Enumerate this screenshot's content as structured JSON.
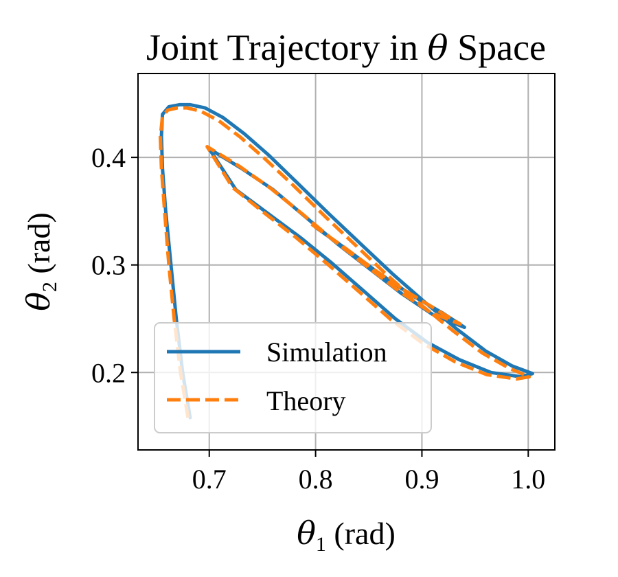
{
  "chart_data": {
    "type": "line",
    "title": {
      "prefix": "Joint Trajectory in ",
      "symbol": "θ",
      "suffix": " Space"
    },
    "xlabel": {
      "symbol": "θ",
      "subscript": "1",
      "unit": " (rad)"
    },
    "ylabel": {
      "symbol": "θ",
      "subscript": "2",
      "unit": " (rad)"
    },
    "xlim": [
      0.633,
      1.025
    ],
    "ylim": [
      0.128,
      0.478
    ],
    "xticks": [
      0.7,
      0.8,
      0.9,
      1.0
    ],
    "xtick_labels": [
      "0.7",
      "0.8",
      "0.9",
      "1.0"
    ],
    "yticks": [
      0.2,
      0.3,
      0.4
    ],
    "ytick_labels": [
      "0.2",
      "0.3",
      "0.4"
    ],
    "grid": true,
    "legend": {
      "location": "lower-left"
    },
    "series": [
      {
        "name": "Simulation",
        "color": "#1f77b4",
        "style": "solid",
        "x": [
          0.682,
          0.675,
          0.669,
          0.664,
          0.659,
          0.656,
          0.655,
          0.656,
          0.662,
          0.672,
          0.682,
          0.696,
          0.713,
          0.733,
          0.756,
          0.782,
          0.812,
          0.842,
          0.872,
          0.902,
          0.932,
          0.96,
          0.985,
          1.004,
          0.993,
          0.965,
          0.935,
          0.905,
          0.875,
          0.845,
          0.815,
          0.785,
          0.755,
          0.725,
          0.7,
          0.73,
          0.76,
          0.79,
          0.82,
          0.85,
          0.88,
          0.91,
          0.94,
          0.92,
          0.89,
          0.86,
          0.83,
          0.8
        ],
        "y": [
          0.158,
          0.2,
          0.25,
          0.3,
          0.35,
          0.39,
          0.42,
          0.44,
          0.447,
          0.449,
          0.449,
          0.446,
          0.437,
          0.422,
          0.402,
          0.377,
          0.348,
          0.32,
          0.292,
          0.266,
          0.241,
          0.22,
          0.206,
          0.199,
          0.196,
          0.2,
          0.212,
          0.228,
          0.25,
          0.276,
          0.302,
          0.326,
          0.348,
          0.37,
          0.408,
          0.39,
          0.37,
          0.345,
          0.32,
          0.297,
          0.274,
          0.254,
          0.242,
          0.255,
          0.272,
          0.292,
          0.314,
          0.335
        ]
      },
      {
        "name": "Theory",
        "color": "#ff7f0e",
        "style": "dashed",
        "x": [
          0.68,
          0.673,
          0.667,
          0.662,
          0.658,
          0.655,
          0.654,
          0.656,
          0.661,
          0.67,
          0.679,
          0.692,
          0.709,
          0.729,
          0.752,
          0.779,
          0.809,
          0.839,
          0.869,
          0.899,
          0.929,
          0.957,
          0.982,
          1.001,
          0.989,
          0.961,
          0.931,
          0.901,
          0.871,
          0.841,
          0.811,
          0.781,
          0.751,
          0.722,
          0.698,
          0.728,
          0.758,
          0.788,
          0.818,
          0.848,
          0.878,
          0.908,
          0.936,
          0.916,
          0.886,
          0.856,
          0.826,
          0.796
        ],
        "y": [
          0.158,
          0.2,
          0.25,
          0.3,
          0.35,
          0.39,
          0.419,
          0.438,
          0.444,
          0.446,
          0.446,
          0.443,
          0.434,
          0.419,
          0.399,
          0.374,
          0.345,
          0.317,
          0.289,
          0.263,
          0.239,
          0.218,
          0.204,
          0.196,
          0.194,
          0.198,
          0.21,
          0.227,
          0.249,
          0.275,
          0.301,
          0.326,
          0.349,
          0.372,
          0.41,
          0.392,
          0.371,
          0.347,
          0.322,
          0.299,
          0.276,
          0.256,
          0.245,
          0.257,
          0.275,
          0.295,
          0.317,
          0.338
        ]
      }
    ]
  }
}
